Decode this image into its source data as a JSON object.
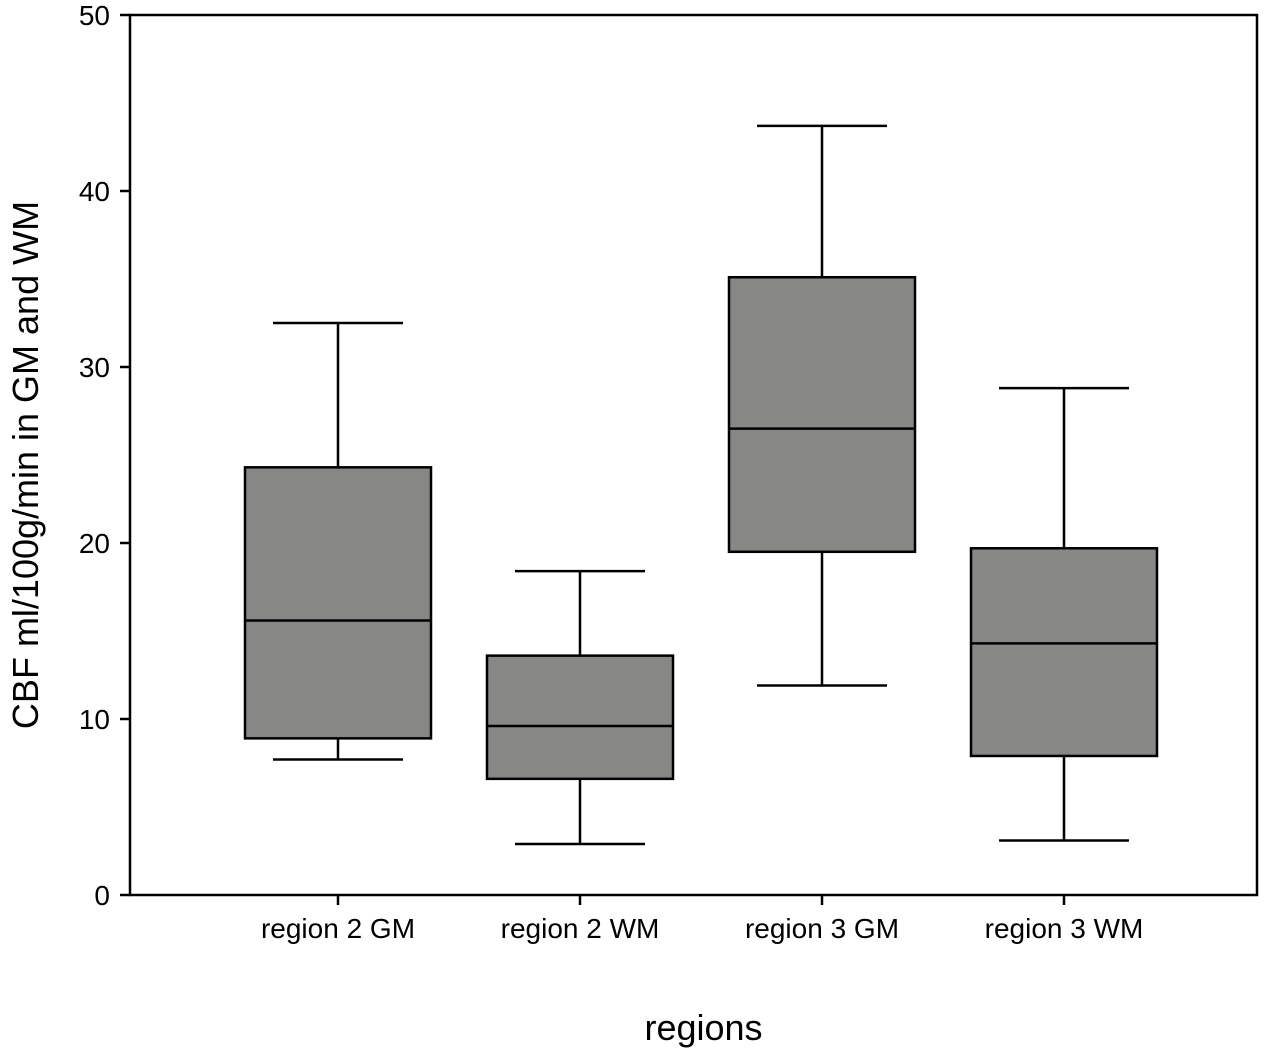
{
  "chart_data": {
    "type": "box",
    "title": "",
    "xlabel": "regions",
    "ylabel": "CBF ml/100g/min in GM and WM",
    "ylim": [
      0,
      50
    ],
    "yticks": [
      0,
      10,
      20,
      30,
      40,
      50
    ],
    "grid": false,
    "legend": "none",
    "box_color": "#878886",
    "categories": [
      "region 2 GM",
      "region 2 WM",
      "region 3 GM",
      "region 3 WM"
    ],
    "boxes": [
      {
        "category": "region 2 GM",
        "whisker_low": 7.7,
        "q1": 8.9,
        "median": 15.6,
        "q3": 24.3,
        "whisker_high": 32.5
      },
      {
        "category": "region 2 WM",
        "whisker_low": 2.9,
        "q1": 6.6,
        "median": 9.6,
        "q3": 13.6,
        "whisker_high": 18.4
      },
      {
        "category": "region 3 GM",
        "whisker_low": 11.9,
        "q1": 19.5,
        "median": 26.5,
        "q3": 35.1,
        "whisker_high": 43.7
      },
      {
        "category": "region 3 WM",
        "whisker_low": 3.1,
        "q1": 7.9,
        "median": 14.3,
        "q3": 19.7,
        "whisker_high": 28.8
      }
    ]
  }
}
